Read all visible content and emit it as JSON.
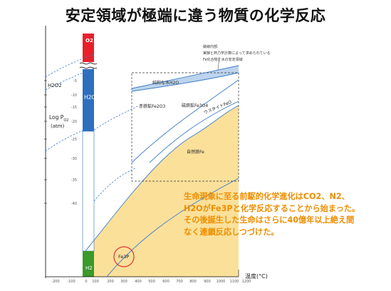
{
  "title": "安定領域が極端に違う物質の化学反応",
  "y_axis": {
    "label_line1": "Log P",
    "label_sub": "O2",
    "label_line2": "(atm)"
  },
  "y_ticks": [
    "-5",
    "-10",
    "-15",
    "-20",
    "-25",
    "-30",
    "-35",
    "-40"
  ],
  "x_axis": {
    "label": "温度(°C)"
  },
  "x_ticks": [
    "-200",
    "-100",
    "0",
    "100",
    "200",
    "300",
    "400",
    "500",
    "600",
    "700",
    "800",
    "900",
    "1000",
    "1100",
    "1200"
  ],
  "regions": {
    "o2": "O2",
    "h2o2": "H2O2",
    "h2o": "H2O",
    "h2": "H2",
    "fe3p": "Fe3P"
  },
  "phases": {
    "pure_water": "純和な水H2O",
    "hematite": "赤鉄鉱Fe2O3",
    "magnetite": "磁鉄鉱Fe3O4",
    "wustite": "ウスタイトFeO",
    "native_iron": "自然鉄Fe"
  },
  "callout": {
    "line1": "破線内部:",
    "line2": "実験と熱力学計算によって求められている",
    "line3": "Fe化合物と水の安定領域"
  },
  "description": [
    "生命現象に至る前駆的化学進化はCO2、N2、",
    "H2OがFe3Pと化学反応することから始まった。",
    "その後誕生した生命はさらに40億年以上絶え間",
    "なく連鎖反応しつづけた。"
  ],
  "colors": {
    "o2": "#e8202a",
    "h2o": "#2d6fbf",
    "h2": "#3a9a2a",
    "yellow": "#fbe09a",
    "lightblue": "#bcd4ec",
    "fe3p_circle": "#e53030",
    "text_accent": "#ee8e00"
  }
}
